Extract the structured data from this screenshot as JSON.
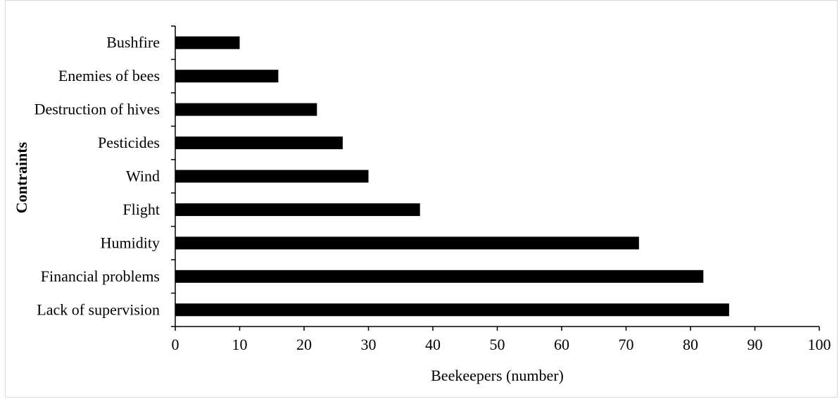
{
  "chart_data": {
    "type": "bar",
    "orientation": "horizontal",
    "title": "",
    "xlabel": "Beekeepers (number)",
    "ylabel": "Contraints",
    "categories": [
      "Bushfire",
      "Enemies of bees",
      "Destruction of hives",
      "Pesticides",
      "Wind",
      "Flight",
      "Humidity",
      "Financial problems",
      "Lack of supervision"
    ],
    "values": [
      10,
      16,
      22,
      26,
      30,
      38,
      72,
      82,
      86
    ],
    "xlim": [
      0,
      100
    ],
    "x_ticks": [
      "0",
      "10",
      "20",
      "30",
      "40",
      "50",
      "60",
      "70",
      "80",
      "90",
      "100"
    ],
    "grid": false,
    "legend": "none",
    "bar_color": "#000000"
  }
}
